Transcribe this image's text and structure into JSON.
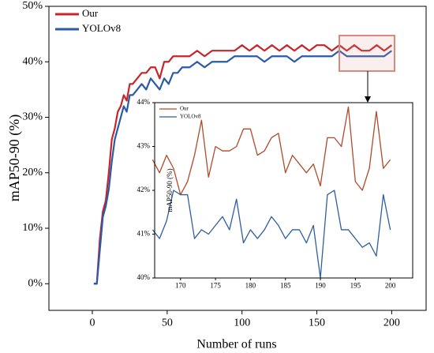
{
  "chart_data": [
    {
      "type": "line",
      "xlabel": "Number of runs",
      "ylabel": "mAP50-90 (%)",
      "xlim": [
        -29,
        223
      ],
      "ylim": [
        -4.8,
        50
      ],
      "xticks": [
        0,
        50,
        100,
        150,
        200
      ],
      "yticks": [
        {
          "value": 0,
          "label": "0%"
        },
        {
          "value": 10,
          "label": "10%"
        },
        {
          "value": 20,
          "label": "20%"
        },
        {
          "value": 30,
          "label": "30%"
        },
        {
          "value": 40,
          "label": "40%"
        },
        {
          "value": 50,
          "label": "50%"
        }
      ],
      "legend": "upper left",
      "x": [
        1,
        3,
        5,
        7,
        9,
        11,
        13,
        15,
        17,
        19,
        21,
        23,
        25,
        27,
        30,
        33,
        36,
        39,
        42,
        45,
        48,
        51,
        54,
        57,
        60,
        65,
        70,
        75,
        80,
        85,
        90,
        95,
        100,
        105,
        110,
        115,
        120,
        125,
        130,
        135,
        140,
        145,
        150,
        155,
        160,
        165,
        170,
        175,
        180,
        185,
        190,
        195,
        200
      ],
      "series": [
        {
          "name": "Our",
          "color": "#c8242b",
          "values": [
            0,
            0,
            8,
            13,
            15,
            20,
            26,
            28,
            31,
            32,
            34,
            33,
            36,
            36,
            37,
            38,
            38,
            39,
            39,
            37,
            40,
            40,
            41,
            41,
            41,
            41,
            42,
            41,
            42,
            42,
            42,
            42,
            43,
            42,
            43,
            42,
            43,
            42,
            43,
            42,
            43,
            42,
            43,
            43,
            42,
            43,
            42,
            43,
            42,
            42,
            43,
            42,
            43
          ]
        },
        {
          "name": "YOLOv8",
          "color": "#2a5aa8",
          "values": [
            0,
            0,
            6,
            12,
            14,
            17,
            22,
            26,
            28,
            30,
            32,
            31,
            34,
            34,
            35,
            36,
            35,
            37,
            36,
            35,
            37,
            36,
            38,
            38,
            39,
            39,
            40,
            39,
            40,
            40,
            40,
            41,
            41,
            41,
            41,
            40,
            41,
            41,
            41,
            40,
            41,
            41,
            41,
            41,
            41,
            42,
            41,
            41,
            41,
            41,
            41,
            41,
            42
          ]
        }
      ]
    },
    {
      "type": "line",
      "ylabel": "mAP50-90 (%)",
      "xlim": [
        166.3,
        203.2
      ],
      "ylim": [
        40,
        44
      ],
      "xticks": [
        170,
        175,
        180,
        185,
        190,
        195,
        200
      ],
      "yticks": [
        {
          "value": 40,
          "label": "40%"
        },
        {
          "value": 41,
          "label": "41%"
        },
        {
          "value": 42,
          "label": "42%"
        },
        {
          "value": 43,
          "label": "43%"
        },
        {
          "value": 44,
          "label": "44%"
        }
      ],
      "legend": "upper left",
      "x": [
        166,
        167,
        168,
        169,
        170,
        171,
        172,
        173,
        174,
        175,
        176,
        177,
        178,
        179,
        180,
        181,
        182,
        183,
        184,
        185,
        186,
        187,
        188,
        189,
        190,
        191,
        192,
        193,
        194,
        195,
        196,
        197,
        198,
        199,
        200
      ],
      "series": [
        {
          "name": "Our",
          "color": "#b04a2a",
          "values": [
            42.7,
            42.4,
            42.8,
            42.5,
            41.9,
            42.2,
            42.8,
            43.6,
            42.3,
            43.0,
            42.9,
            42.9,
            43.0,
            43.4,
            43.4,
            42.8,
            42.9,
            43.2,
            43.3,
            42.4,
            42.8,
            42.6,
            42.4,
            42.6,
            42.1,
            43.2,
            43.2,
            43.0,
            43.9,
            42.2,
            42.0,
            42.5,
            43.8,
            42.5,
            42.7
          ]
        },
        {
          "name": "YOLOv8",
          "color": "#2f5f9e",
          "values": [
            41.1,
            40.9,
            41.3,
            42.0,
            41.9,
            41.9,
            40.9,
            41.1,
            41.0,
            41.2,
            41.4,
            41.1,
            41.8,
            40.8,
            41.1,
            40.9,
            41.1,
            41.4,
            41.2,
            40.9,
            41.1,
            41.1,
            40.8,
            41.2,
            40.0,
            41.9,
            42.0,
            41.1,
            41.1,
            40.9,
            40.7,
            40.8,
            40.5,
            41.9,
            41.1
          ]
        }
      ]
    }
  ]
}
